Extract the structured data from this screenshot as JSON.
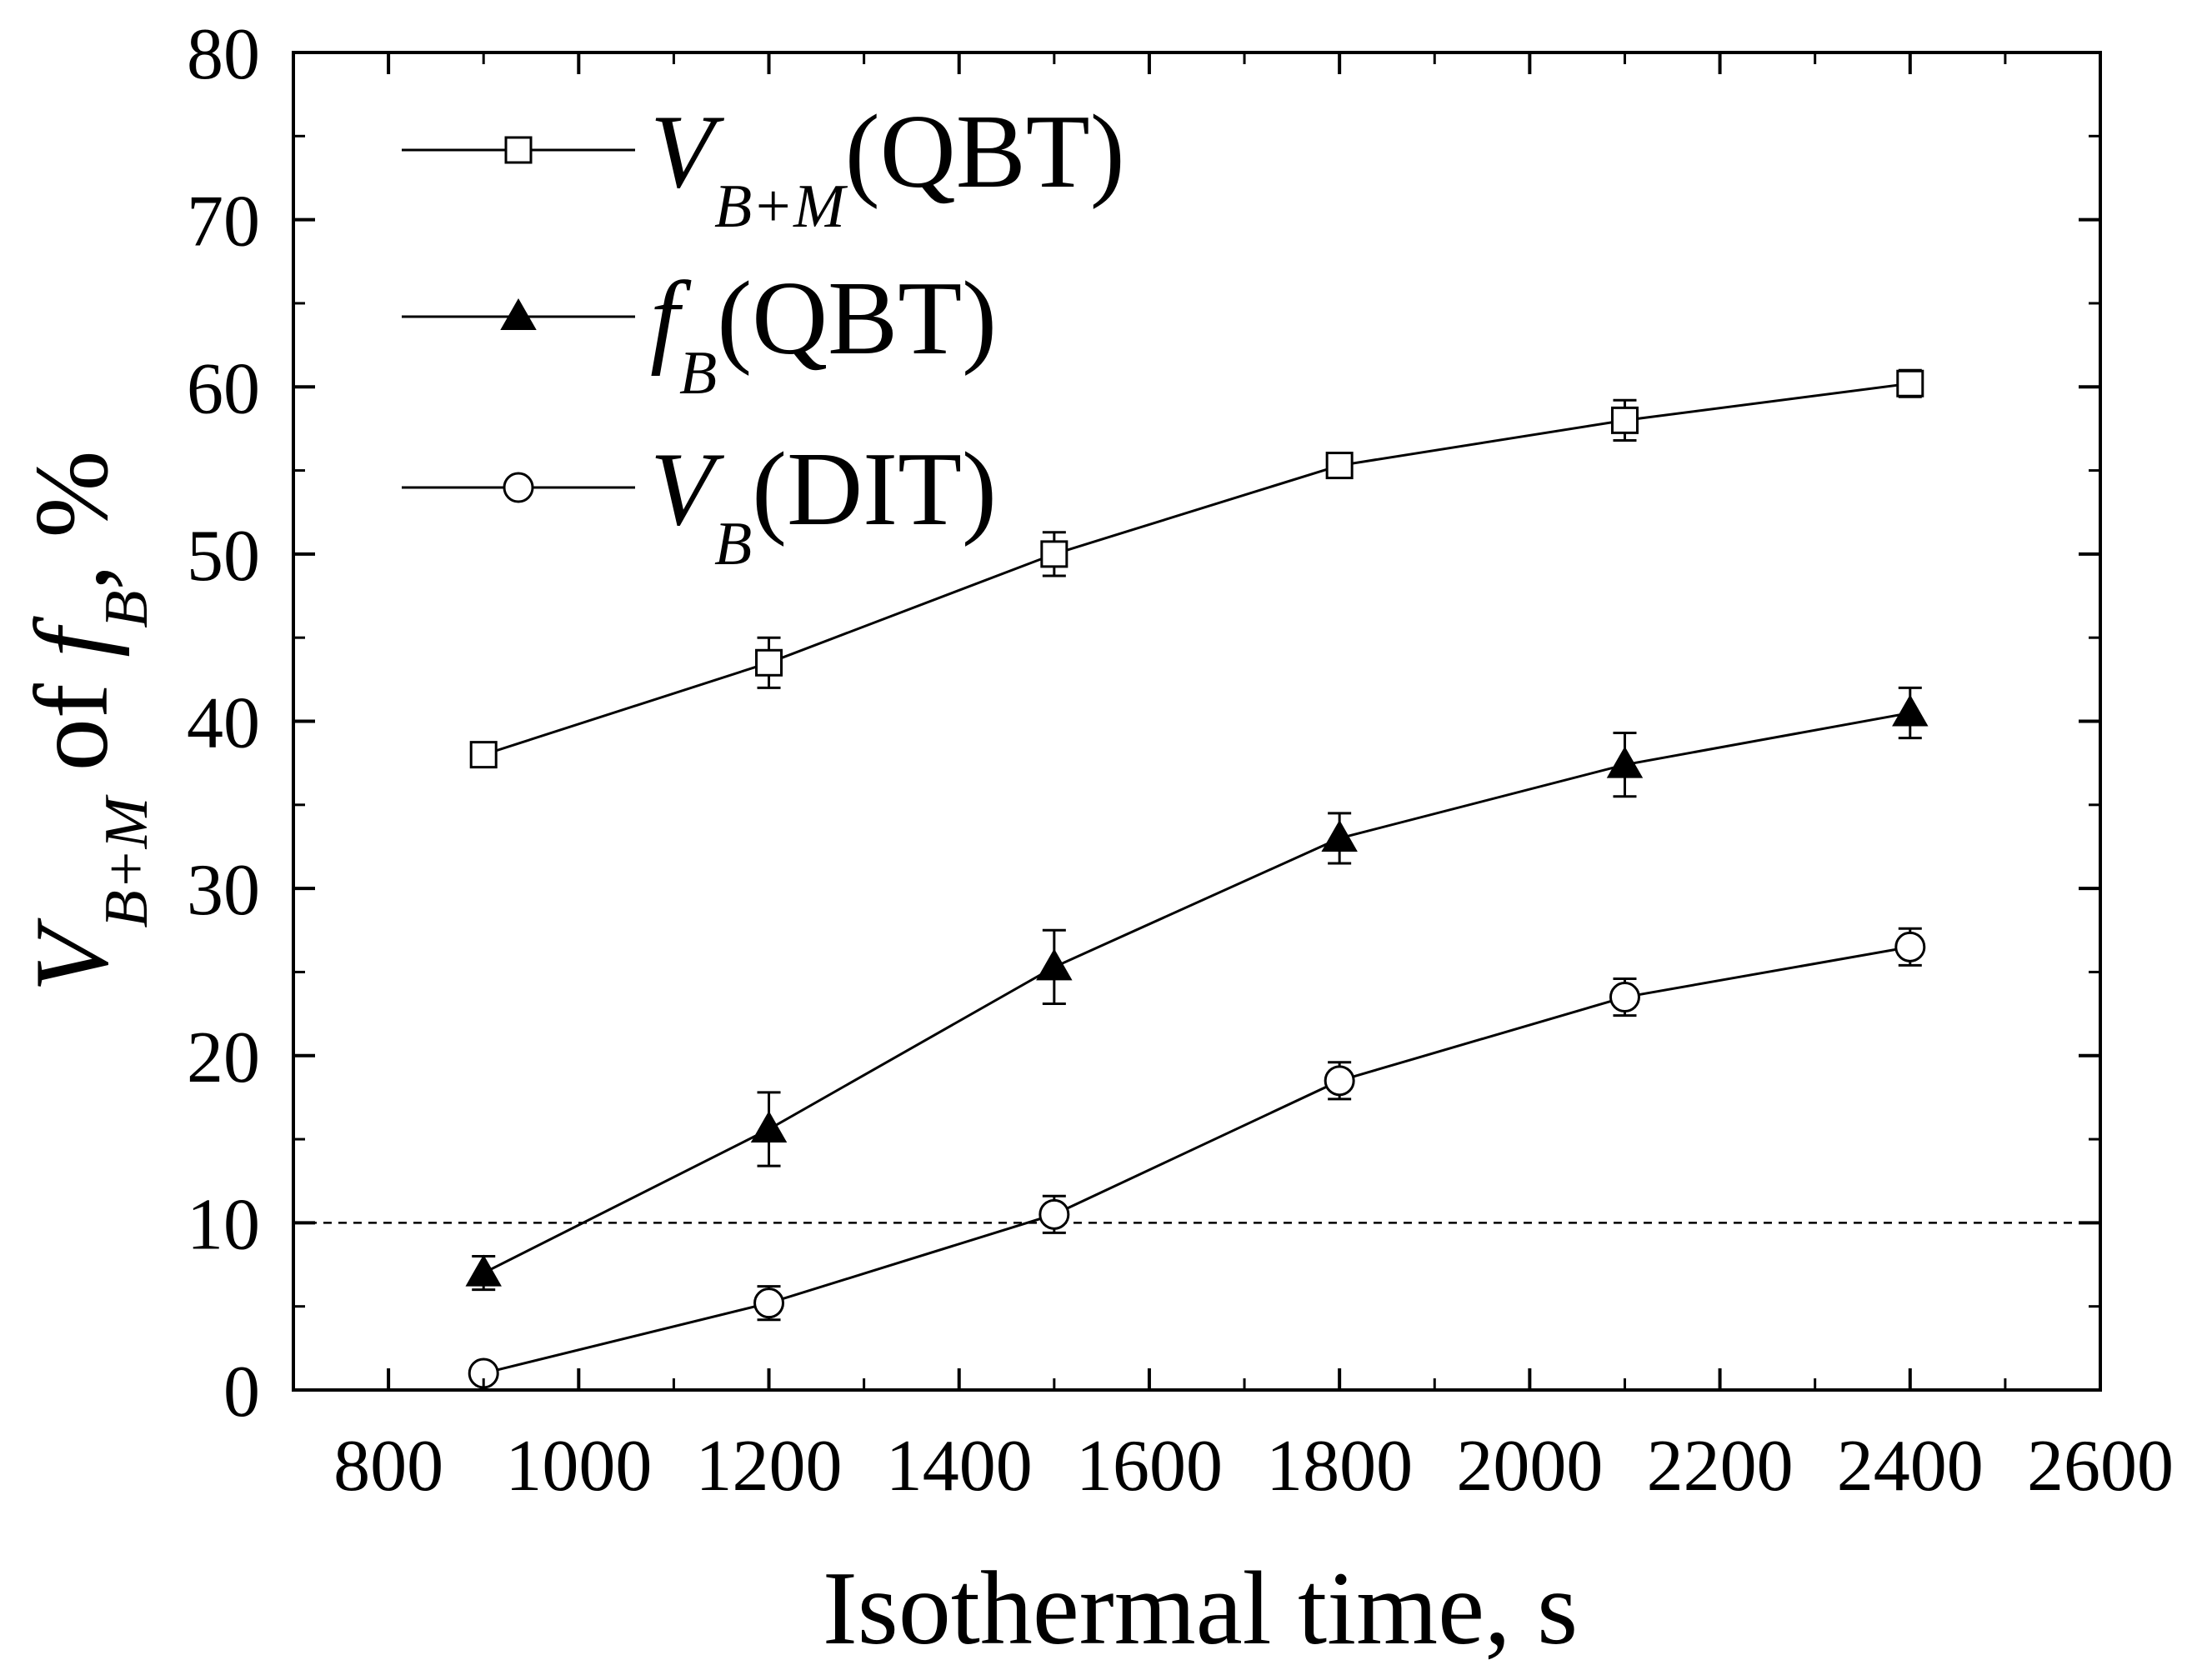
{
  "chart_data": {
    "type": "line",
    "title": "",
    "xlabel": "Isothermal time, s",
    "ylabel": {
      "parts": [
        {
          "text": "V",
          "italic": true,
          "sub": false
        },
        {
          "text": "B+M",
          "italic": true,
          "sub": true
        },
        {
          "text": " of ",
          "italic": false,
          "sub": false
        },
        {
          "text": "f",
          "italic": true,
          "sub": false
        },
        {
          "text": "B",
          "italic": true,
          "sub": true
        },
        {
          "text": ", %",
          "italic": false,
          "sub": false
        }
      ]
    },
    "xlim": [
      700,
      2600
    ],
    "ylim": [
      0,
      80
    ],
    "x_ticks": [
      800,
      1000,
      1200,
      1400,
      1600,
      1800,
      2000,
      2200,
      2400,
      2600
    ],
    "y_ticks": [
      0,
      10,
      20,
      30,
      40,
      50,
      60,
      70,
      80
    ],
    "legend_position": "top-left",
    "reference_line": {
      "y": 10,
      "style": "dashed"
    },
    "series": [
      {
        "name_main": "V",
        "name_sub": "B+M",
        "name_suffix": "(QBT)",
        "marker": "open-square",
        "color": "#000000",
        "x": [
          900,
          1200,
          1500,
          1800,
          2100,
          2400
        ],
        "y": [
          38.0,
          43.5,
          50.0,
          55.3,
          58.0,
          60.2
        ],
        "err": [
          0.0,
          1.5,
          1.3,
          0.7,
          1.2,
          0.8
        ]
      },
      {
        "name_main": "f",
        "name_sub": "B",
        "name_suffix": "(QBT)",
        "marker": "filled-triangle",
        "color": "#000000",
        "x": [
          900,
          1200,
          1500,
          1800,
          2100,
          2400
        ],
        "y": [
          7.0,
          15.6,
          25.3,
          33.0,
          37.4,
          40.5
        ],
        "err": [
          1.0,
          2.2,
          2.2,
          1.5,
          1.9,
          1.5
        ]
      },
      {
        "name_main": "V",
        "name_sub": "B",
        "name_suffix": "(DIT)",
        "marker": "open-circle",
        "color": "#000000",
        "x": [
          900,
          1200,
          1500,
          1800,
          2100,
          2400
        ],
        "y": [
          1.0,
          5.2,
          10.5,
          18.5,
          23.5,
          26.5
        ],
        "err": [
          0.0,
          1.0,
          1.1,
          1.1,
          1.1,
          1.1
        ]
      }
    ]
  }
}
